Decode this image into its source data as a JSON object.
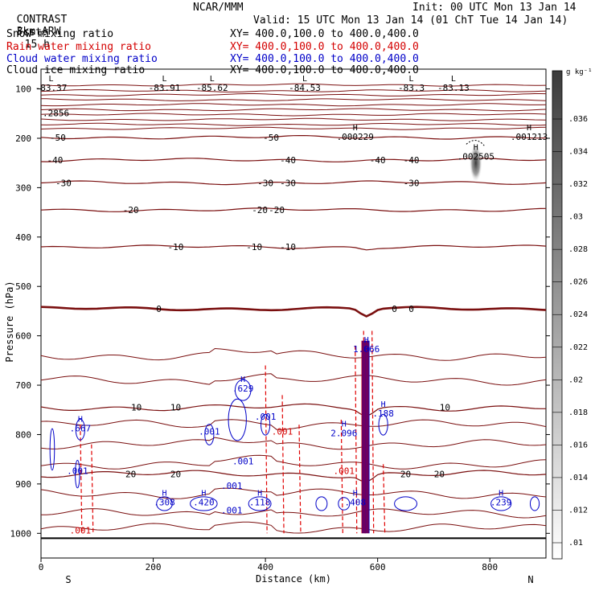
{
  "header": {
    "model": "CONTRAST",
    "resolution": "3km ARW",
    "source": "NCAR/MMM",
    "init": "Init: 00 UTC Mon 13 Jan 14",
    "fcst_label": "Fcst:",
    "fcst_value": "15 h",
    "valid": "Valid: 15 UTC Mon 13 Jan 14 (01 ChT Tue 14 Jan 14)"
  },
  "legend_rows": [
    {
      "name": "Snow mixing ratio",
      "xy": "XY= 400.0,100.0 to 400.0,400.0",
      "color": "#000000"
    },
    {
      "name": "Rain water mixing ratio",
      "xy": "XY= 400.0,100.0 to 400.0,400.0",
      "color": "#d40000"
    },
    {
      "name": "Cloud water mixing ratio",
      "xy": "XY= 400.0,100.0 to 400.0,400.0",
      "color": "#0000c8"
    },
    {
      "name": "Cloud ice mixing ratio",
      "xy": "XY= 400.0,100.0 to 400.0,400.0",
      "color": "#000000"
    }
  ],
  "chart_data": {
    "type": "cross-section",
    "xlabel": "Distance (km)",
    "ylabel": "Pressure (hPa)",
    "xlim": [
      0,
      900
    ],
    "ylim": [
      1050,
      60
    ],
    "x_ticks": [
      0,
      200,
      400,
      600,
      800
    ],
    "y_ticks": [
      100,
      200,
      300,
      400,
      500,
      600,
      700,
      800,
      900,
      1000
    ],
    "x_end_labels": {
      "left": "S",
      "right": "N"
    },
    "temperature_contours": [
      {
        "label": "-50",
        "pressure": 198,
        "label_x": [
          30,
          410
        ]
      },
      {
        "label": "-40",
        "pressure": 244,
        "label_x": [
          25,
          440,
          600,
          660
        ]
      },
      {
        "label": "-30",
        "pressure": 290,
        "label_x": [
          40,
          400,
          440,
          660
        ]
      },
      {
        "label": "-20",
        "pressure": 345,
        "label_x": [
          160,
          390,
          420
        ]
      },
      {
        "label": "-10",
        "pressure": 420,
        "label_x": [
          240,
          380,
          440
        ]
      },
      {
        "label": "0",
        "pressure": 545,
        "label_x": [
          210,
          630,
          660
        ]
      },
      {
        "label": "10",
        "pressure": 745,
        "label_x": [
          170,
          240,
          720
        ]
      },
      {
        "label": "20",
        "pressure": 880,
        "label_x": [
          160,
          240,
          650,
          710
        ]
      }
    ],
    "lows": [
      {
        "x": 18,
        "pressure": 88,
        "value": "-83.37"
      },
      {
        "x": 220,
        "pressure": 88,
        "value": "-83.91"
      },
      {
        "x": 305,
        "pressure": 88,
        "value": "-85.62"
      },
      {
        "x": 470,
        "pressure": 88,
        "value": "-84.53"
      },
      {
        "x": 660,
        "pressure": 88,
        "value": "-83.3"
      },
      {
        "x": 735,
        "pressure": 88,
        "value": "-83.13"
      }
    ],
    "highs_cloud_ice": [
      {
        "x": 560,
        "pressure": 200,
        "value": ".000229"
      },
      {
        "x": 775,
        "pressure": 240,
        "value": ".002505"
      },
      {
        "x": 870,
        "pressure": 200,
        "value": ".001213"
      }
    ],
    "highs_cloud_water": [
      {
        "x": 70,
        "pressure": 790,
        "value": ".667"
      },
      {
        "x": 360,
        "pressure": 710,
        "value": ".629"
      },
      {
        "x": 580,
        "pressure": 630,
        "value": "1.066"
      },
      {
        "x": 540,
        "pressure": 800,
        "value": "2.096"
      },
      {
        "x": 610,
        "pressure": 760,
        "value": ".188"
      },
      {
        "x": 220,
        "pressure": 940,
        "value": ".308"
      },
      {
        "x": 290,
        "pressure": 940,
        "value": ".420"
      },
      {
        "x": 390,
        "pressure": 940,
        "value": ".118"
      },
      {
        "x": 560,
        "pressure": 940,
        "value": ".408"
      },
      {
        "x": 820,
        "pressure": 940,
        "value": ".239"
      }
    ],
    "extra_labels": [
      {
        "text": ".2856",
        "x": 0,
        "pressure": 155,
        "color": "#000000"
      },
      {
        "text": ".001",
        "x": 65,
        "pressure": 880,
        "color": "#0000c8"
      },
      {
        "text": ".001",
        "x": 360,
        "pressure": 860,
        "color": "#0000c8"
      },
      {
        "text": ".001",
        "x": 400,
        "pressure": 770,
        "color": "#0000c8"
      },
      {
        "text": ".001",
        "x": 300,
        "pressure": 800,
        "color": "#0000c8"
      },
      {
        "text": ".001",
        "x": 430,
        "pressure": 800,
        "color": "#d40000"
      },
      {
        "text": ".001",
        "x": 540,
        "pressure": 880,
        "color": "#d40000"
      },
      {
        "text": ".001",
        "x": 70,
        "pressure": 1000,
        "color": "#d40000"
      },
      {
        "text": ".001",
        "x": 340,
        "pressure": 910,
        "color": "#0000c8"
      },
      {
        "text": ".001",
        "x": 340,
        "pressure": 960,
        "color": "#0000c8"
      }
    ],
    "colorbar": {
      "unit": "g kg⁻¹",
      "ticks": [
        ".036",
        ".034",
        ".032",
        ".03",
        ".028",
        ".026",
        ".024",
        ".022",
        ".02",
        ".018",
        ".016",
        ".014",
        ".012",
        ".01"
      ]
    }
  }
}
